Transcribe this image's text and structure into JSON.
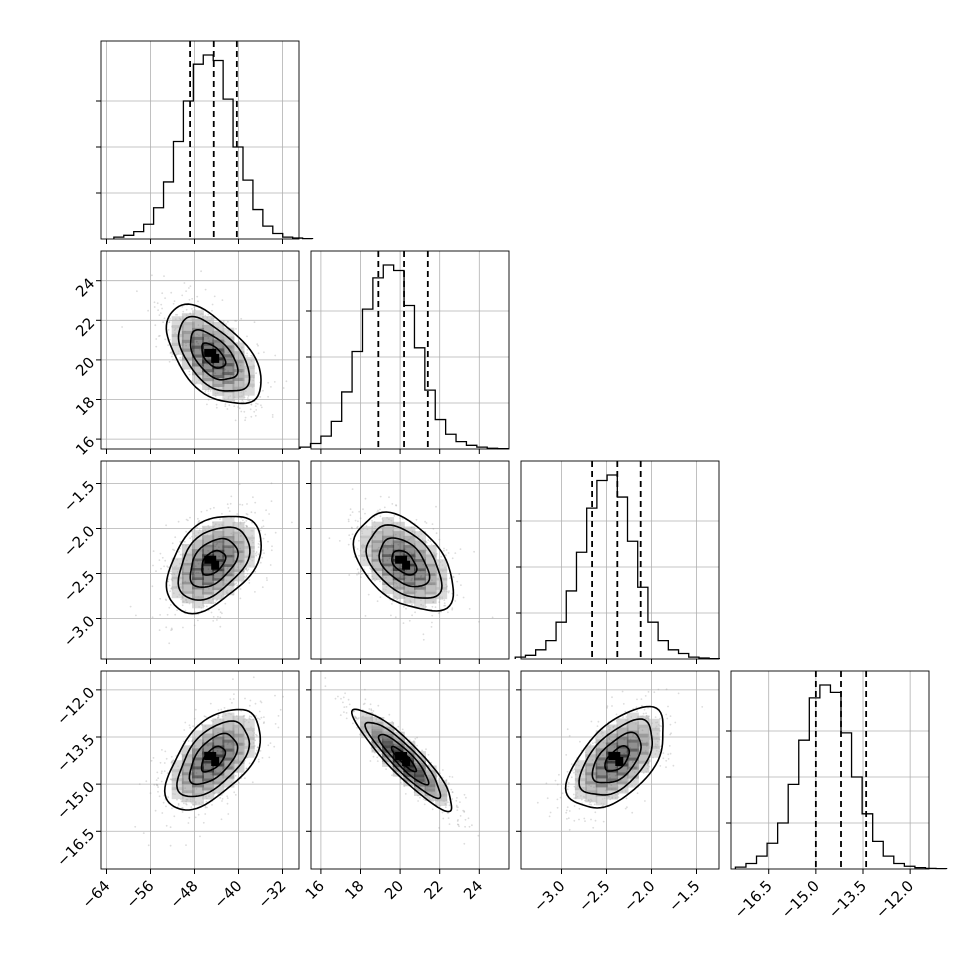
{
  "chart_data": {
    "type": "corner",
    "title": "",
    "parameters": [
      {
        "range": [
          -65,
          -29
        ],
        "ticks": [
          -64,
          -56,
          -48,
          -40,
          -32
        ],
        "tick_labels": [
          "−64",
          "−56",
          "−48",
          "−40",
          "−32"
        ],
        "quantiles": [
          -48.8,
          -44.5,
          -40.3
        ],
        "mean": -44.6,
        "sd": 4.3
      },
      {
        "range": [
          15.5,
          25.5
        ],
        "ticks": [
          16,
          18,
          20,
          22,
          24
        ],
        "tick_labels": [
          "16",
          "18",
          "20",
          "22",
          "24"
        ],
        "quantiles": [
          18.9,
          20.2,
          21.4
        ],
        "mean": 20.2,
        "sd": 1.25
      },
      {
        "range": [
          -3.45,
          -1.25
        ],
        "ticks": [
          -3.0,
          -2.5,
          -2.0,
          -1.5
        ],
        "tick_labels": [
          "−3.0",
          "−2.5",
          "−2.0",
          "−1.5"
        ],
        "quantiles": [
          -2.66,
          -2.38,
          -2.12
        ],
        "mean": -2.38,
        "sd": 0.27
      },
      {
        "range": [
          -17.7,
          -11.4
        ],
        "ticks": [
          -16.5,
          -15.0,
          -13.5,
          -12.0
        ],
        "tick_labels": [
          "−16.5",
          "−15.0",
          "−13.5",
          "−12.0"
        ],
        "quantiles": [
          -15.0,
          -14.2,
          -13.4
        ],
        "mean": -14.2,
        "sd": 0.8
      }
    ],
    "histogram_shapes": [
      [
        0.01,
        0.02,
        0.04,
        0.08,
        0.17,
        0.31,
        0.53,
        0.75,
        0.95,
        1.0,
        0.97,
        0.76,
        0.5,
        0.32,
        0.16,
        0.07,
        0.03,
        0.01,
        0.005,
        0.002
      ],
      [
        0.01,
        0.03,
        0.07,
        0.15,
        0.31,
        0.53,
        0.76,
        0.93,
        1.0,
        0.97,
        0.78,
        0.55,
        0.32,
        0.16,
        0.08,
        0.04,
        0.02,
        0.01,
        0.004,
        0.002
      ],
      [
        0.01,
        0.02,
        0.05,
        0.1,
        0.2,
        0.37,
        0.58,
        0.82,
        0.97,
        1.0,
        0.88,
        0.64,
        0.39,
        0.2,
        0.1,
        0.05,
        0.03,
        0.01,
        0.005,
        0.002
      ],
      [
        0.01,
        0.03,
        0.07,
        0.14,
        0.25,
        0.46,
        0.7,
        0.93,
        1.0,
        0.96,
        0.74,
        0.5,
        0.3,
        0.15,
        0.07,
        0.03,
        0.015,
        0.007,
        0.003,
        0.002
      ]
    ],
    "correlations": {
      "1-0": -0.55,
      "2-0": 0.42,
      "2-1": -0.45,
      "3-0": 0.55,
      "3-1": -0.9,
      "3-2": 0.55
    },
    "contour_levels_sigma": [
      0.5,
      1.0,
      1.5,
      2.0
    ],
    "grid": true,
    "colors": {
      "line": "#000000",
      "quantile": "#000000",
      "grid": "#b0b0b0",
      "density_dark": "#000000",
      "points": "#9a9a9a"
    }
  }
}
